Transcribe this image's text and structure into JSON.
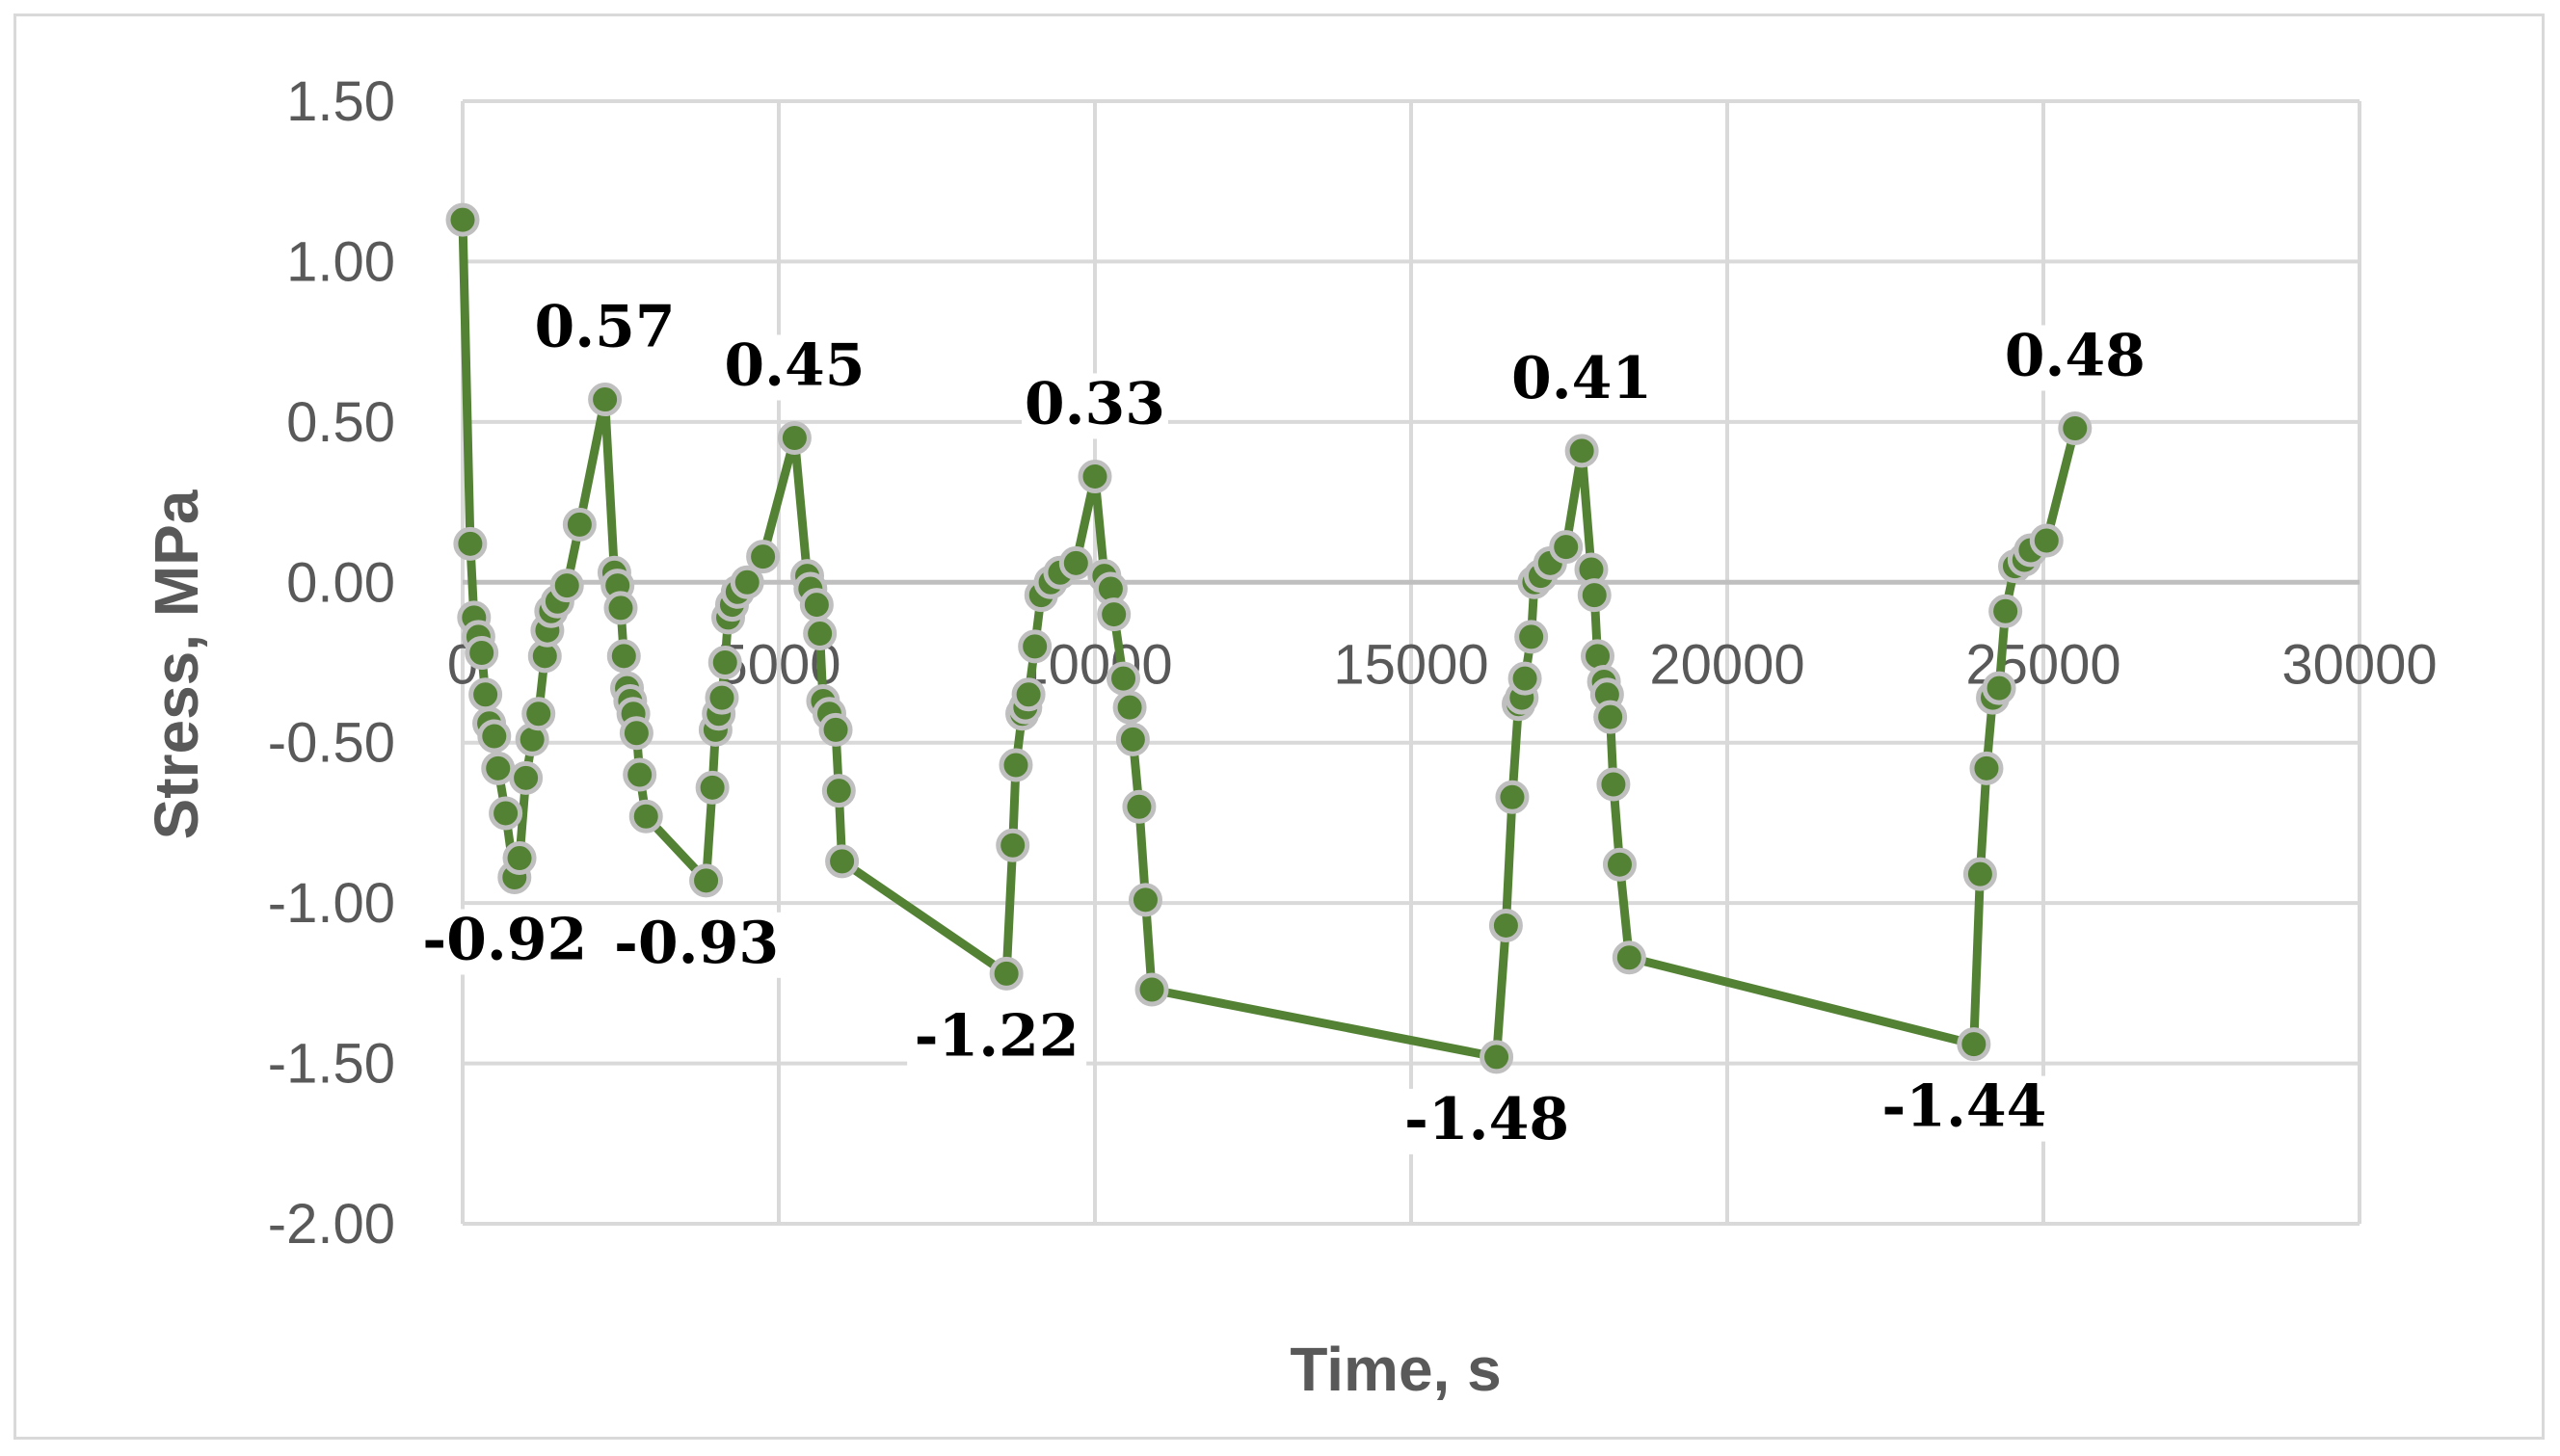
{
  "chart_data": {
    "type": "scatter",
    "title": "",
    "xlabel": "Time, s",
    "ylabel": "Stress, MPa",
    "xlim": [
      0,
      30000
    ],
    "ylim": [
      -2.0,
      1.5
    ],
    "x_ticks": [
      0,
      5000,
      10000,
      15000,
      20000,
      25000,
      30000
    ],
    "x_tick_labels": [
      "0",
      "5000",
      "10000",
      "15000",
      "20000",
      "25000",
      "30000"
    ],
    "y_ticks": [
      1.5,
      1.0,
      0.5,
      0.0,
      -0.5,
      -1.0,
      -1.5,
      -2.0
    ],
    "y_tick_labels": [
      "1.50",
      "1.00",
      "0.50",
      "0.00",
      "-0.50",
      "-1.00",
      "-1.50",
      "-2.00"
    ],
    "grid": true,
    "legend": "none",
    "colors": {
      "line": "#548235",
      "marker_fill": "#548235",
      "marker_edge": "#bfbfbf",
      "grid": "#d9d9d9",
      "zero_line": "#bfbfbf"
    },
    "series": [
      {
        "points": [
          [
            0,
            1.13
          ],
          [
            120,
            0.12
          ],
          [
            180,
            -0.11
          ],
          [
            250,
            -0.17
          ],
          [
            300,
            -0.22
          ],
          [
            360,
            -0.35
          ],
          [
            420,
            -0.44
          ],
          [
            500,
            -0.48
          ],
          [
            560,
            -0.58
          ],
          [
            680,
            -0.72
          ],
          [
            820,
            -0.92
          ],
          [
            900,
            -0.86
          ],
          [
            1000,
            -0.61
          ],
          [
            1100,
            -0.49
          ],
          [
            1200,
            -0.41
          ],
          [
            1300,
            -0.23
          ],
          [
            1340,
            -0.15
          ],
          [
            1400,
            -0.09
          ],
          [
            1500,
            -0.06
          ],
          [
            1650,
            -0.01
          ],
          [
            1850,
            0.18
          ],
          [
            2250,
            0.57
          ],
          [
            2400,
            0.03
          ],
          [
            2450,
            -0.01
          ],
          [
            2500,
            -0.08
          ],
          [
            2550,
            -0.23
          ],
          [
            2600,
            -0.33
          ],
          [
            2650,
            -0.37
          ],
          [
            2700,
            -0.41
          ],
          [
            2750,
            -0.47
          ],
          [
            2800,
            -0.6
          ],
          [
            2900,
            -0.73
          ],
          [
            3850,
            -0.93
          ],
          [
            3950,
            -0.64
          ],
          [
            4000,
            -0.46
          ],
          [
            4050,
            -0.41
          ],
          [
            4100,
            -0.36
          ],
          [
            4150,
            -0.25
          ],
          [
            4200,
            -0.11
          ],
          [
            4260,
            -0.07
          ],
          [
            4350,
            -0.03
          ],
          [
            4500,
            0.0
          ],
          [
            4750,
            0.08
          ],
          [
            5250,
            0.45
          ],
          [
            5450,
            0.02
          ],
          [
            5500,
            -0.02
          ],
          [
            5600,
            -0.07
          ],
          [
            5650,
            -0.16
          ],
          [
            5700,
            -0.37
          ],
          [
            5800,
            -0.41
          ],
          [
            5900,
            -0.46
          ],
          [
            5950,
            -0.65
          ],
          [
            6000,
            -0.87
          ],
          [
            8600,
            -1.22
          ],
          [
            8700,
            -0.82
          ],
          [
            8750,
            -0.57
          ],
          [
            8850,
            -0.41
          ],
          [
            8900,
            -0.39
          ],
          [
            8950,
            -0.35
          ],
          [
            9050,
            -0.2
          ],
          [
            9150,
            -0.04
          ],
          [
            9300,
            0.0
          ],
          [
            9450,
            0.03
          ],
          [
            9700,
            0.06
          ],
          [
            10000,
            0.33
          ],
          [
            10150,
            0.02
          ],
          [
            10250,
            -0.02
          ],
          [
            10300,
            -0.1
          ],
          [
            10450,
            -0.3
          ],
          [
            10550,
            -0.39
          ],
          [
            10600,
            -0.49
          ],
          [
            10700,
            -0.7
          ],
          [
            10800,
            -0.99
          ],
          [
            10900,
            -1.27
          ],
          [
            16350,
            -1.48
          ],
          [
            16500,
            -1.07
          ],
          [
            16600,
            -0.67
          ],
          [
            16700,
            -0.38
          ],
          [
            16750,
            -0.36
          ],
          [
            16800,
            -0.3
          ],
          [
            16900,
            -0.17
          ],
          [
            16950,
            0.0
          ],
          [
            17050,
            0.02
          ],
          [
            17200,
            0.06
          ],
          [
            17450,
            0.11
          ],
          [
            17700,
            0.41
          ],
          [
            17850,
            0.04
          ],
          [
            17900,
            -0.04
          ],
          [
            17950,
            -0.23
          ],
          [
            18050,
            -0.31
          ],
          [
            18100,
            -0.35
          ],
          [
            18150,
            -0.42
          ],
          [
            18200,
            -0.63
          ],
          [
            18300,
            -0.88
          ],
          [
            18450,
            -1.17
          ],
          [
            23900,
            -1.44
          ],
          [
            24000,
            -0.91
          ],
          [
            24100,
            -0.58
          ],
          [
            24200,
            -0.36
          ],
          [
            24300,
            -0.33
          ],
          [
            24400,
            -0.09
          ],
          [
            24550,
            0.05
          ],
          [
            24700,
            0.07
          ],
          [
            24800,
            0.1
          ],
          [
            25050,
            0.13
          ],
          [
            25500,
            0.48
          ]
        ]
      }
    ],
    "annotations": [
      {
        "text": "0.57",
        "x": 2250,
        "y": 0.57,
        "position": "above"
      },
      {
        "text": "0.45",
        "x": 5250,
        "y": 0.45,
        "position": "above"
      },
      {
        "text": "0.33",
        "x": 10000,
        "y": 0.33,
        "position": "above"
      },
      {
        "text": "0.41",
        "x": 17700,
        "y": 0.41,
        "position": "above"
      },
      {
        "text": "0.48",
        "x": 25500,
        "y": 0.48,
        "position": "above"
      },
      {
        "text": "-0.92",
        "x": 820,
        "y": -0.92,
        "position": "below"
      },
      {
        "text": "-0.93",
        "x": 3850,
        "y": -0.93,
        "position": "below"
      },
      {
        "text": "-1.22",
        "x": 8600,
        "y": -1.22,
        "position": "below"
      },
      {
        "text": "-1.48",
        "x": 16350,
        "y": -1.48,
        "position": "below"
      },
      {
        "text": "-1.44",
        "x": 23900,
        "y": -1.44,
        "position": "below"
      }
    ]
  }
}
